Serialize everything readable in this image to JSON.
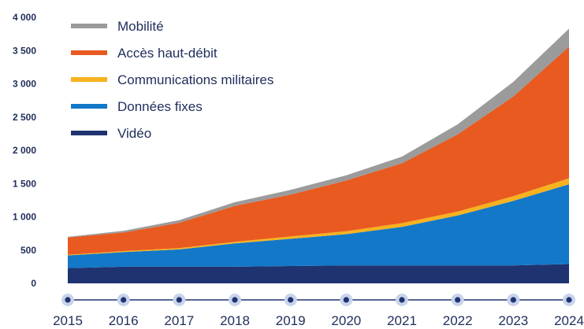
{
  "chart_data": {
    "type": "area",
    "stacked": true,
    "x": [
      "2015",
      "2016",
      "2017",
      "2018",
      "2019",
      "2020",
      "2021",
      "2022",
      "2023",
      "2024"
    ],
    "ylim": [
      0,
      4000
    ],
    "yticks": [
      0,
      500,
      1000,
      1500,
      2000,
      2500,
      3000,
      3500,
      4000
    ],
    "ytick_labels": [
      "0",
      "500",
      "1 000",
      "1 500",
      "2 000",
      "2 500",
      "3 000",
      "3 500",
      "4 000"
    ],
    "grid": false,
    "legend_position": "top-left",
    "series": [
      {
        "name": "Vidéo",
        "color": "#1f3370",
        "values": [
          230,
          250,
          250,
          250,
          260,
          270,
          270,
          270,
          270,
          290
        ]
      },
      {
        "name": "Données fixes",
        "color": "#1378c8",
        "values": [
          190,
          220,
          260,
          350,
          410,
          470,
          580,
          750,
          970,
          1200
        ]
      },
      {
        "name": "Communications militaires",
        "color": "#f7b21f",
        "values": [
          10,
          15,
          20,
          25,
          35,
          45,
          55,
          60,
          70,
          90
        ]
      },
      {
        "name": "Accès haut-débit",
        "color": "#e85a20",
        "values": [
          260,
          280,
          380,
          540,
          630,
          760,
          900,
          1160,
          1500,
          1980
        ]
      },
      {
        "name": "Mobilité",
        "color": "#9b9b9b",
        "values": [
          10,
          25,
          40,
          55,
          70,
          80,
          100,
          150,
          220,
          270
        ]
      }
    ],
    "legend_order": [
      "Mobilité",
      "Accès haut-débit",
      "Communications militaires",
      "Données fixes",
      "Vidéo"
    ]
  }
}
